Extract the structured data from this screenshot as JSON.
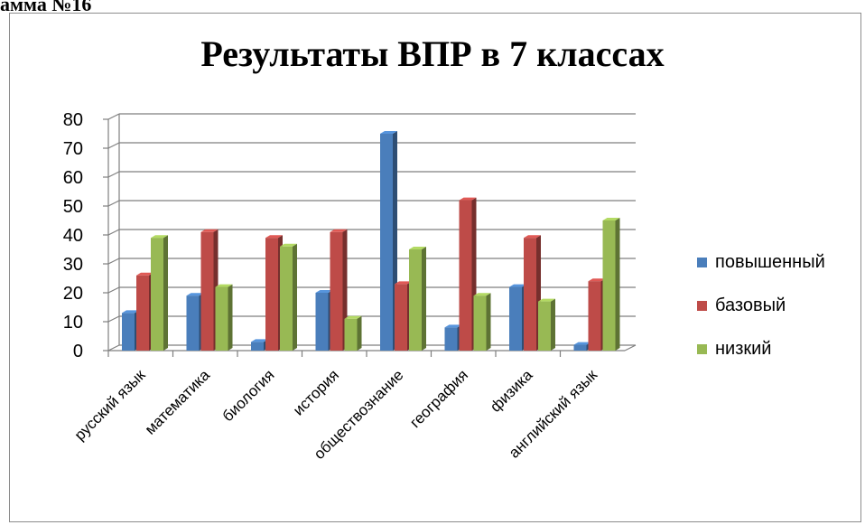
{
  "caption": "амма №16",
  "chart_data": {
    "type": "bar",
    "title": "Результаты ВПР в 7 классах",
    "xlabel": "",
    "ylabel": "",
    "ylim": [
      0,
      80
    ],
    "yticks": [
      0,
      10,
      20,
      30,
      40,
      50,
      60,
      70,
      80
    ],
    "grid": true,
    "legend_position": "right",
    "categories": [
      "русский язык",
      "математика",
      "биология",
      "история",
      "обществознание",
      "география",
      "физика",
      "английский язык"
    ],
    "series": [
      {
        "name": "повышенный",
        "color": "#4a7ebb",
        "values": [
          13,
          19,
          3,
          20,
          75,
          8,
          22,
          2
        ]
      },
      {
        "name": "базовый",
        "color": "#be4b48",
        "values": [
          26,
          41,
          39,
          41,
          23,
          52,
          39,
          24
        ]
      },
      {
        "name": "низкий",
        "color": "#98b954",
        "values": [
          39,
          22,
          36,
          11,
          35,
          19,
          17,
          45
        ]
      }
    ]
  }
}
